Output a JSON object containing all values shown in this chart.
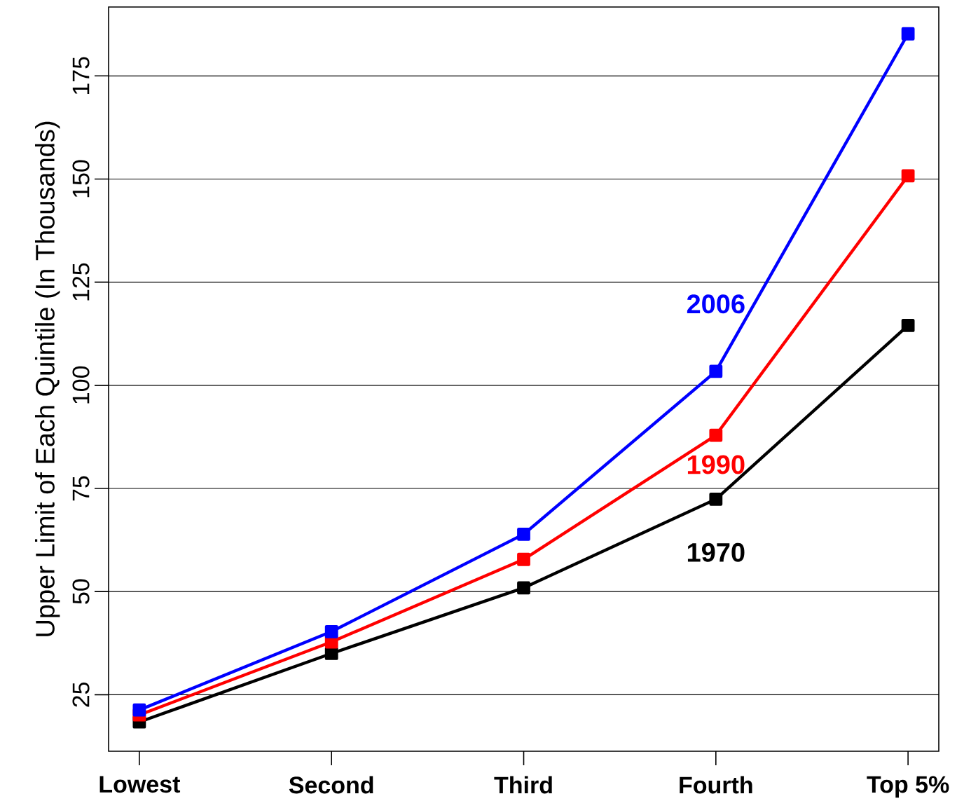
{
  "chart_data": {
    "type": "line",
    "ylabel": "Upper Limit of Each Quintile (In Thousands)",
    "categories": [
      "Lowest",
      "Second",
      "Third",
      "Fourth",
      "Top 5%"
    ],
    "series": [
      {
        "name": "2006",
        "color": "#0000ff",
        "values": [
          21.3,
          40.3,
          63.9,
          103.4,
          185.2
        ]
      },
      {
        "name": "1990",
        "color": "#ff0000",
        "values": [
          20.1,
          37.8,
          57.8,
          87.9,
          150.8
        ]
      },
      {
        "name": "1970",
        "color": "#000000",
        "values": [
          18.4,
          35.0,
          50.9,
          72.4,
          114.5
        ]
      }
    ],
    "ylim": [
      11.3,
      191.7
    ],
    "yticks": [
      25,
      50,
      75,
      100,
      125,
      150,
      175
    ],
    "grid": "y",
    "marker": "square",
    "line_style": "solid"
  }
}
